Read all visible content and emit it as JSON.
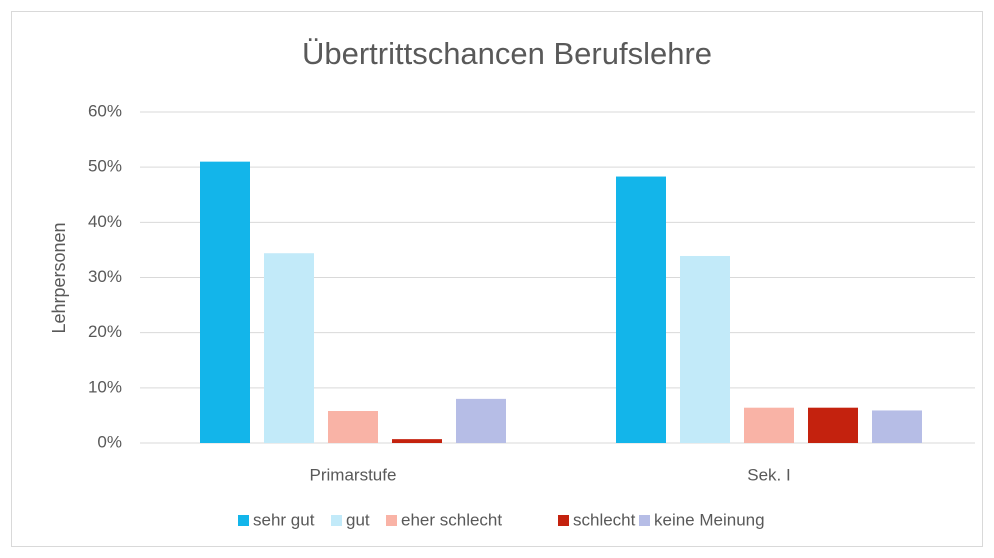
{
  "chart_data": {
    "type": "bar",
    "title": "Übertrittschancen Berufslehre",
    "y_label": "Lehrpersonen",
    "categories": [
      "Primarstufe",
      "Sek. I"
    ],
    "series": [
      {
        "name": "sehr gut",
        "color": "#13b5ea",
        "values": [
          51,
          48.3
        ]
      },
      {
        "name": "gut",
        "color": "#c2eaf9",
        "values": [
          34.4,
          33.9
        ]
      },
      {
        "name": "eher schlecht",
        "color": "#f9b3a6",
        "values": [
          5.8,
          6.4
        ]
      },
      {
        "name": "schlecht",
        "color": "#c4220e",
        "values": [
          0.7,
          6.4
        ]
      },
      {
        "name": "keine Meinung",
        "color": "#b6bde6",
        "values": [
          8,
          5.9
        ]
      }
    ],
    "ylim": [
      0,
      60
    ],
    "yticks": [
      {
        "value": 0,
        "label": "0%"
      },
      {
        "value": 10,
        "label": "10%"
      },
      {
        "value": 20,
        "label": "20%"
      },
      {
        "value": 30,
        "label": "30%"
      },
      {
        "value": 40,
        "label": "40%"
      },
      {
        "value": 50,
        "label": "50%"
      },
      {
        "value": 60,
        "label": "60%"
      }
    ],
    "grid": true,
    "legend": "bottom"
  }
}
